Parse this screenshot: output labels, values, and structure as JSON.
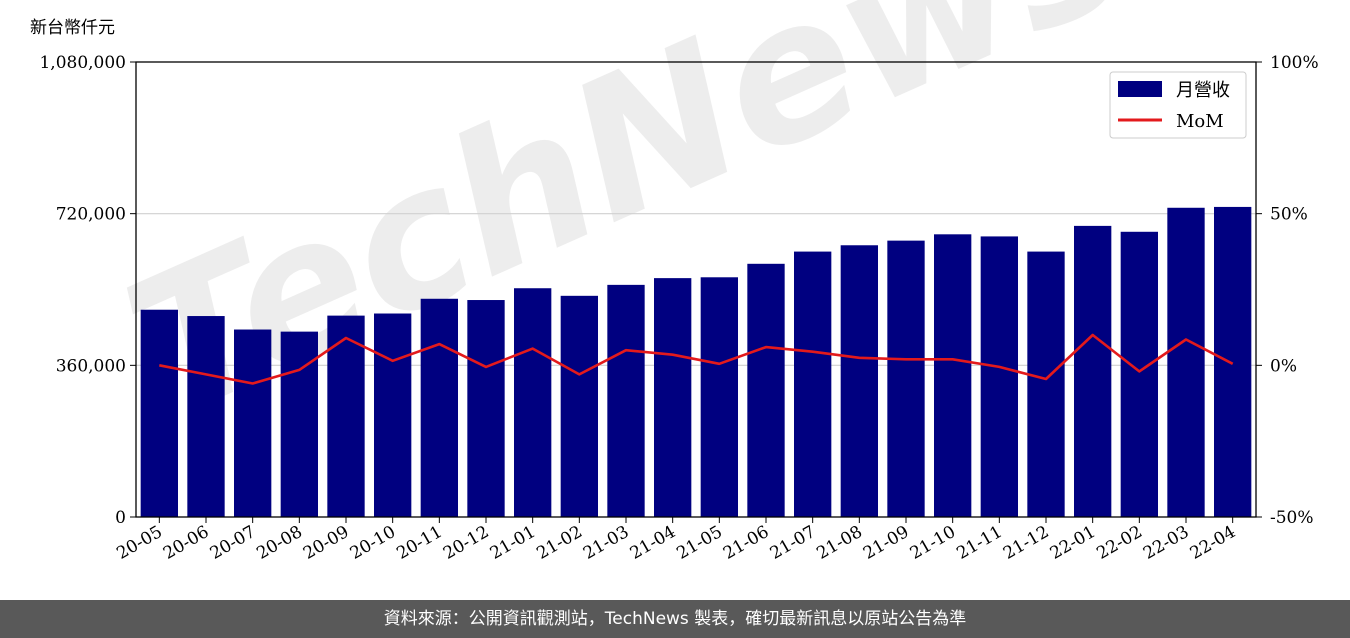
{
  "chart_data": {
    "type": "bar",
    "y_unit_label": "新台幣仟元",
    "categories": [
      "20-05",
      "20-06",
      "20-07",
      "20-08",
      "20-09",
      "20-10",
      "20-11",
      "20-12",
      "21-01",
      "21-02",
      "21-03",
      "21-04",
      "21-05",
      "21-06",
      "21-07",
      "21-08",
      "21-09",
      "21-10",
      "21-11",
      "21-12",
      "22-01",
      "22-02",
      "22-03",
      "22-04"
    ],
    "series": [
      {
        "name": "月營收",
        "type": "bar",
        "axis": "left",
        "color": "#000080",
        "values": [
          492000,
          477000,
          445000,
          440000,
          478000,
          483000,
          518000,
          515000,
          543000,
          525000,
          551000,
          567000,
          569000,
          601000,
          630000,
          645000,
          656000,
          671000,
          666000,
          630000,
          691000,
          677000,
          734000,
          736000
        ]
      },
      {
        "name": "MoM",
        "type": "line",
        "axis": "right",
        "color": "#e31a1c",
        "values": [
          0.0,
          -3.0,
          -6.0,
          -1.5,
          9.0,
          1.5,
          7.0,
          -0.5,
          5.5,
          -3.0,
          5.0,
          3.5,
          0.5,
          6.0,
          4.5,
          2.5,
          2.0,
          2.0,
          -0.5,
          -4.5,
          10.0,
          -2.0,
          8.5,
          0.5
        ]
      }
    ],
    "y_left": {
      "min": 0,
      "max": 1080000,
      "ticks": [
        "0",
        "360,000",
        "720,000",
        "1,080,000"
      ]
    },
    "y_right": {
      "min": -50,
      "max": 100,
      "ticks": [
        "-50%",
        "0%",
        "50%",
        "100%"
      ]
    },
    "grid": "horizontal",
    "legend": {
      "position": "top-right",
      "entries": [
        "月營收",
        "MoM"
      ]
    },
    "watermark": "TechNews"
  },
  "footer": {
    "text": "資料來源：公開資訊觀測站，TechNews 製表，確切最新訊息以原站公告為準"
  }
}
